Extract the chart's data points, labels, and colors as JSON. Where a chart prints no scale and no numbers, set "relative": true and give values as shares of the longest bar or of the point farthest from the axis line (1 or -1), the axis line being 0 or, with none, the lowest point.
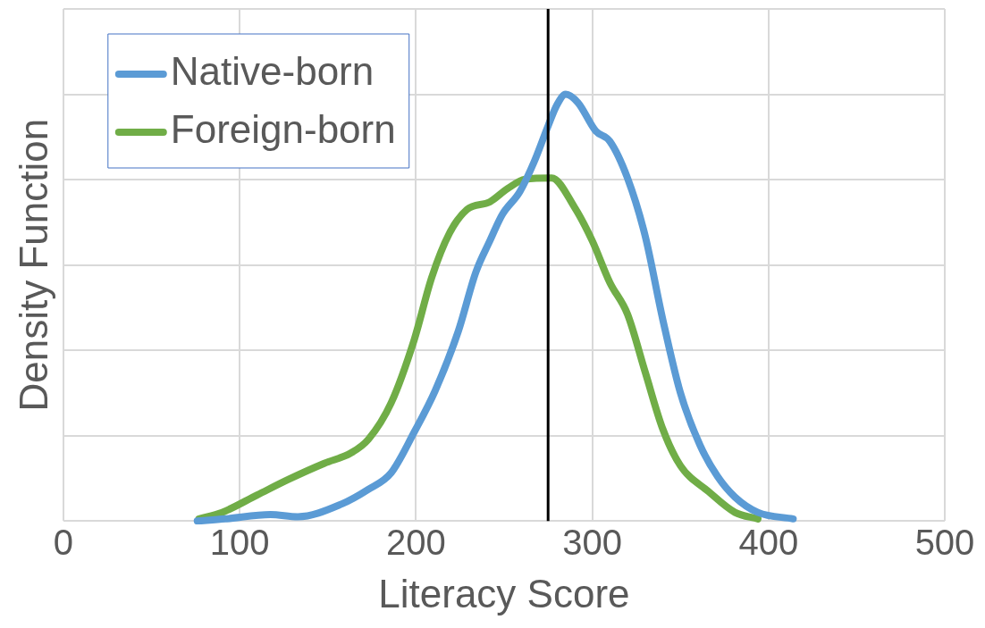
{
  "chart_data": {
    "type": "line",
    "xlabel": "Literacy Score",
    "ylabel": "Density Function",
    "relative": true,
    "xlim": [
      0,
      500
    ],
    "xticks": [
      0,
      100,
      200,
      300,
      400,
      500
    ],
    "grid": true,
    "legend": "top left",
    "marker": "none",
    "line_style": "solid",
    "ref_lines": [
      {
        "axis": "x",
        "value": 275,
        "color": "#000000"
      }
    ],
    "series": [
      {
        "name": "Native-born",
        "color": "#5b9bd5",
        "x": [
          76,
          92,
          117.5,
          133,
          158,
          173,
          186,
          199,
          211,
          224,
          234,
          242,
          249,
          259,
          267,
          275,
          280,
          285,
          292,
          302,
          310,
          320,
          330,
          340,
          350,
          361,
          371,
          381,
          394,
          414
        ],
        "values": [
          0,
          0.005,
          0.015,
          0.01,
          0.04,
          0.074,
          0.113,
          0.208,
          0.306,
          0.444,
          0.583,
          0.657,
          0.718,
          0.772,
          0.841,
          0.926,
          0.975,
          1,
          0.98,
          0.914,
          0.89,
          0.804,
          0.669,
          0.473,
          0.301,
          0.179,
          0.105,
          0.056,
          0.02,
          0.005
        ]
      },
      {
        "name": "Foreign-born",
        "color": "#70ad47",
        "x": [
          77,
          90,
          110,
          128,
          148,
          163,
          173,
          186,
          199,
          209,
          219,
          229,
          242,
          252,
          262,
          277,
          290,
          300,
          310,
          320,
          330,
          340,
          350,
          366,
          381,
          394
        ],
        "values": [
          0.005,
          0.02,
          0.061,
          0.098,
          0.135,
          0.159,
          0.191,
          0.277,
          0.424,
          0.571,
          0.674,
          0.73,
          0.748,
          0.779,
          0.801,
          0.804,
          0.735,
          0.657,
          0.559,
          0.485,
          0.35,
          0.216,
          0.13,
          0.069,
          0.02,
          0.005
        ]
      }
    ]
  }
}
